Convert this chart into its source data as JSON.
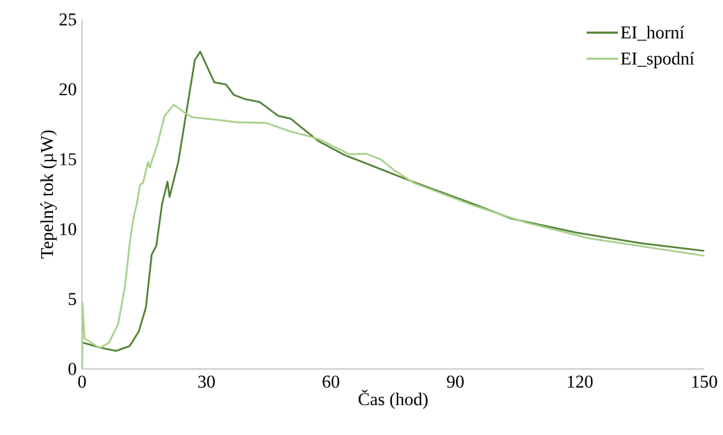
{
  "chart_data": {
    "type": "line",
    "xlabel": "Čas (hod)",
    "ylabel": "Tepelný tok (µW)",
    "xlim": [
      0,
      150
    ],
    "xticks": [
      0,
      30,
      60,
      90,
      120,
      150
    ],
    "ylim": [
      0,
      25
    ],
    "yticks": [
      0,
      5,
      10,
      15,
      20,
      25
    ],
    "grid": false,
    "legend": "top right",
    "marker": "none",
    "line_style": "solid",
    "series": [
      {
        "name": "EI_horní",
        "color": "#548235",
        "x": [
          0.05,
          4.2,
          8.2,
          11.5,
          13.7,
          15.4,
          16.8,
          17.9,
          19.3,
          20.6,
          21.1,
          23.2,
          24.9,
          27.2,
          28.5,
          30.5,
          31.9,
          34.7,
          36.6,
          39.4,
          42.8,
          47.3,
          50.3,
          52.8,
          57.0,
          63.3,
          78.8,
          94.3,
          103.6,
          119.2,
          134.7,
          150
        ],
        "values": [
          1.9,
          1.54,
          1.29,
          1.64,
          2.7,
          4.4,
          8.2,
          8.8,
          11.8,
          13.4,
          12.3,
          14.8,
          17.9,
          22.1,
          22.7,
          21.4,
          20.5,
          20.35,
          19.6,
          19.3,
          19.1,
          18.1,
          17.9,
          17.3,
          16.3,
          15.3,
          13.5,
          11.8,
          10.75,
          9.75,
          9.0,
          8.45
        ]
      },
      {
        "name": "EI_spodní",
        "color": "#a9d18e",
        "x": [
          0.05,
          0.1,
          0.6,
          4.2,
          6.5,
          8.7,
          10.4,
          11.5,
          12.3,
          13.2,
          14.0,
          14.7,
          15.9,
          16.3,
          18.2,
          19.9,
          22.1,
          24.4,
          26.6,
          33.3,
          37.2,
          44.4,
          50.1,
          54.0,
          57.0,
          60.8,
          64.5,
          68.5,
          72.0,
          75.1,
          80.0,
          94.3,
          106.7,
          122.2,
          137.8,
          150
        ],
        "values": [
          0,
          4.75,
          2.2,
          1.5,
          1.88,
          3.2,
          6.0,
          9.0,
          10.65,
          11.8,
          13.2,
          13.3,
          14.8,
          14.4,
          16.1,
          18.1,
          18.9,
          18.4,
          18.0,
          17.8,
          17.65,
          17.6,
          17.0,
          16.7,
          16.45,
          15.9,
          15.35,
          15.4,
          15.0,
          14.25,
          13.3,
          11.7,
          10.5,
          9.35,
          8.65,
          8.1
        ]
      }
    ]
  }
}
